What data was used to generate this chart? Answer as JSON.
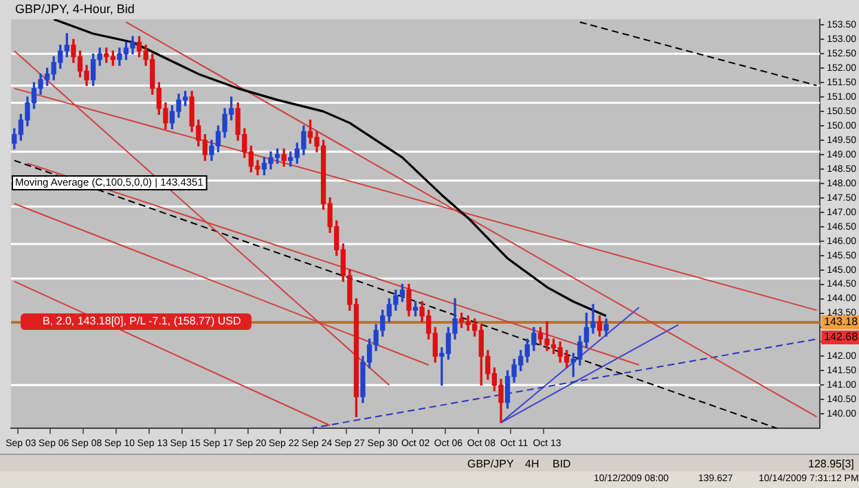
{
  "chart_data": {
    "type": "candlestick",
    "title": "GBP/JPY, 4-Hour, Bid",
    "categories": [
      null,
      "Sep 03",
      null,
      null,
      null,
      null,
      "Sep 06",
      null,
      null,
      null,
      null,
      "Sep 08",
      null,
      null,
      null,
      null,
      "Sep 10",
      null,
      null,
      null,
      null,
      "Sep 13",
      null,
      null,
      null,
      null,
      "Sep 15",
      null,
      null,
      null,
      null,
      "Sep 17",
      null,
      null,
      null,
      null,
      "Sep 20",
      null,
      null,
      null,
      null,
      "Sep 22",
      null,
      null,
      null,
      null,
      "Sep 24",
      null,
      null,
      null,
      null,
      "Sep 27",
      null,
      null,
      null,
      null,
      "Sep 30",
      null,
      null,
      null,
      null,
      "Oct 02",
      null,
      null,
      null,
      null,
      "Oct 06",
      null,
      null,
      null,
      null,
      "Oct 08",
      null,
      null,
      null,
      null,
      "Oct 11",
      null,
      null,
      null,
      null,
      "Oct 13",
      null,
      null,
      null,
      null,
      null,
      null,
      null,
      null,
      null,
      null,
      null,
      null,
      null,
      null,
      null,
      null,
      null,
      null,
      null,
      null,
      null,
      null,
      null,
      null,
      null,
      null,
      null,
      null,
      null,
      null,
      null,
      null,
      null,
      null,
      null,
      null,
      null,
      null,
      null,
      null,
      null
    ],
    "ohlc": [
      [
        149.4,
        149.9,
        149.2,
        149.7
      ],
      [
        149.7,
        150.4,
        149.5,
        150.2
      ],
      [
        150.2,
        151.0,
        150.0,
        150.8
      ],
      [
        150.8,
        151.5,
        150.6,
        151.3
      ],
      [
        151.3,
        151.8,
        151.1,
        151.6
      ],
      [
        151.6,
        152.0,
        151.4,
        151.8
      ],
      [
        151.8,
        152.4,
        151.6,
        152.2
      ],
      [
        152.2,
        152.8,
        152.0,
        152.6
      ],
      [
        152.6,
        153.2,
        152.4,
        152.8
      ],
      [
        152.8,
        153.0,
        152.2,
        152.4
      ],
      [
        152.4,
        152.6,
        151.7,
        151.9
      ],
      [
        151.9,
        152.1,
        151.4,
        151.6
      ],
      [
        151.6,
        152.5,
        151.4,
        152.3
      ],
      [
        152.3,
        152.7,
        152.1,
        152.5
      ],
      [
        152.5,
        152.7,
        152.2,
        152.4
      ],
      [
        152.4,
        152.6,
        152.1,
        152.3
      ],
      [
        152.3,
        152.7,
        152.1,
        152.5
      ],
      [
        152.5,
        152.9,
        152.3,
        152.7
      ],
      [
        152.7,
        153.1,
        152.5,
        152.9
      ],
      [
        152.9,
        153.1,
        152.4,
        152.6
      ],
      [
        152.6,
        152.8,
        152.1,
        152.3
      ],
      [
        152.3,
        152.5,
        151.1,
        151.3
      ],
      [
        151.3,
        151.5,
        150.4,
        150.6
      ],
      [
        150.6,
        150.8,
        149.9,
        150.1
      ],
      [
        150.1,
        150.7,
        149.9,
        150.5
      ],
      [
        150.5,
        151.1,
        150.3,
        150.9
      ],
      [
        150.9,
        151.2,
        150.7,
        151.0
      ],
      [
        151.0,
        151.2,
        149.8,
        150.0
      ],
      [
        150.0,
        150.2,
        149.3,
        149.5
      ],
      [
        149.5,
        149.7,
        148.8,
        149.0
      ],
      [
        149.0,
        149.5,
        148.8,
        149.3
      ],
      [
        149.3,
        150.0,
        149.1,
        149.8
      ],
      [
        149.8,
        150.6,
        149.6,
        150.4
      ],
      [
        150.4,
        151.0,
        150.2,
        150.6
      ],
      [
        150.6,
        150.8,
        149.5,
        149.7
      ],
      [
        149.7,
        149.9,
        148.9,
        149.1
      ],
      [
        149.1,
        149.3,
        148.4,
        148.6
      ],
      [
        148.6,
        148.8,
        148.3,
        148.5
      ],
      [
        148.5,
        148.9,
        148.3,
        148.7
      ],
      [
        148.7,
        149.1,
        148.5,
        148.9
      ],
      [
        148.9,
        149.2,
        148.7,
        149.0
      ],
      [
        149.0,
        149.2,
        148.6,
        148.8
      ],
      [
        148.8,
        149.1,
        148.6,
        148.9
      ],
      [
        148.9,
        149.4,
        148.7,
        149.2
      ],
      [
        149.2,
        150.0,
        149.0,
        149.8
      ],
      [
        149.8,
        150.2,
        149.4,
        149.6
      ],
      [
        149.6,
        149.8,
        149.1,
        149.3
      ],
      [
        149.3,
        149.5,
        147.1,
        147.3
      ],
      [
        147.3,
        147.5,
        146.3,
        146.5
      ],
      [
        146.5,
        146.7,
        145.5,
        145.7
      ],
      [
        145.7,
        145.9,
        144.6,
        144.8
      ],
      [
        144.8,
        145.0,
        143.6,
        143.8
      ],
      [
        143.8,
        144.0,
        139.9,
        140.6
      ],
      [
        140.6,
        142.0,
        140.4,
        141.8
      ],
      [
        141.8,
        142.6,
        141.6,
        142.4
      ],
      [
        142.4,
        143.1,
        142.2,
        142.9
      ],
      [
        142.9,
        143.6,
        142.7,
        143.4
      ],
      [
        143.4,
        144.0,
        143.2,
        143.8
      ],
      [
        143.8,
        144.3,
        143.6,
        144.1
      ],
      [
        144.1,
        144.5,
        143.9,
        144.3
      ],
      [
        144.3,
        144.5,
        143.4,
        143.6
      ],
      [
        143.6,
        143.9,
        143.4,
        143.7
      ],
      [
        143.7,
        143.9,
        143.2,
        143.4
      ],
      [
        143.4,
        143.6,
        142.6,
        142.8
      ],
      [
        142.8,
        143.0,
        141.8,
        142.0
      ],
      [
        142.0,
        142.3,
        141.0,
        142.1
      ],
      [
        142.1,
        143.0,
        141.9,
        142.8
      ],
      [
        142.8,
        144.0,
        142.6,
        143.3
      ],
      [
        143.3,
        143.5,
        143.0,
        143.2
      ],
      [
        143.2,
        143.4,
        142.9,
        143.1
      ],
      [
        143.1,
        143.3,
        142.7,
        142.9
      ],
      [
        142.9,
        143.1,
        141.0,
        142.0
      ],
      [
        142.0,
        142.2,
        141.2,
        141.4
      ],
      [
        141.4,
        141.6,
        140.8,
        141.0
      ],
      [
        141.0,
        141.2,
        139.7,
        140.4
      ],
      [
        140.4,
        141.5,
        140.2,
        141.3
      ],
      [
        141.3,
        141.9,
        141.1,
        141.7
      ],
      [
        141.7,
        142.2,
        141.5,
        142.0
      ],
      [
        142.0,
        142.6,
        141.8,
        142.4
      ],
      [
        142.4,
        143.0,
        142.2,
        142.8
      ],
      [
        142.8,
        143.0,
        142.4,
        142.6
      ],
      [
        142.6,
        143.2,
        142.2,
        142.4
      ],
      [
        142.4,
        142.6,
        142.1,
        142.3
      ],
      [
        142.3,
        142.5,
        141.8,
        142.0
      ],
      [
        142.0,
        142.2,
        141.6,
        141.8
      ],
      [
        141.8,
        142.1,
        141.3,
        141.9
      ],
      [
        141.9,
        142.7,
        141.7,
        142.5
      ],
      [
        142.5,
        143.5,
        142.3,
        143.0
      ],
      [
        143.0,
        143.8,
        142.8,
        143.2
      ],
      [
        143.2,
        143.4,
        142.7,
        142.9
      ],
      [
        142.9,
        143.3,
        142.7,
        143.1
      ],
      null,
      null,
      null,
      null,
      null,
      null,
      null,
      null,
      null,
      null,
      null,
      null,
      null,
      null,
      null,
      null,
      null,
      null,
      null,
      null,
      null,
      null,
      null,
      null,
      null,
      null,
      null,
      null,
      null,
      null,
      null,
      null
    ],
    "series": [
      {
        "type": "line",
        "color": "#000000",
        "values": [
          null,
          null,
          null,
          null,
          null,
          null,
          153.7,
          null,
          null,
          null,
          null,
          null,
          153.2,
          null,
          null,
          null,
          null,
          null,
          152.9,
          null,
          null,
          null,
          null,
          null,
          null,
          null,
          null,
          null,
          151.8,
          null,
          null,
          null,
          null,
          null,
          151.3,
          null,
          null,
          null,
          null,
          null,
          150.9,
          null,
          null,
          null,
          null,
          null,
          null,
          150.5,
          null,
          null,
          null,
          150.1,
          null,
          null,
          null,
          null,
          null,
          null,
          null,
          148.9,
          null,
          null,
          null,
          null,
          null,
          147.6,
          null,
          null,
          null,
          146.8,
          null,
          null,
          null,
          null,
          null,
          145.4,
          null,
          null,
          null,
          null,
          null,
          144.4,
          null,
          null,
          null,
          143.9,
          null,
          null,
          null,
          null,
          143.4,
          null,
          null,
          null,
          null,
          null,
          null,
          null,
          null,
          null,
          null,
          null,
          null,
          null,
          null,
          null,
          null,
          null,
          null,
          null,
          null,
          null,
          null,
          null,
          null,
          null,
          null,
          null,
          null,
          null,
          null,
          null,
          null
        ]
      },
      {
        "type": "line",
        "color": "#d04040",
        "values": [
          null,
          null,
          null,
          null,
          null,
          null,
          null,
          null,
          null,
          null,
          null,
          null,
          null,
          null,
          null,
          null,
          null,
          153.6,
          null,
          null,
          null,
          null,
          null,
          null,
          null,
          null,
          null,
          null,
          null,
          null,
          null,
          null,
          null,
          null,
          null,
          null,
          null,
          null,
          null,
          null,
          null,
          null,
          null,
          null,
          null,
          null,
          null,
          null,
          null,
          null,
          null,
          null,
          null,
          null,
          null,
          null,
          null,
          null,
          null,
          null,
          null,
          null,
          null,
          null,
          null,
          null,
          null,
          null,
          null,
          null,
          null,
          null,
          null,
          null,
          null,
          null,
          null,
          null,
          null,
          null,
          null,
          null,
          null,
          null,
          null,
          null,
          null,
          null,
          null,
          null,
          null,
          null,
          null,
          null,
          null,
          null,
          null,
          null,
          null,
          null,
          null,
          null,
          null,
          null,
          null,
          null,
          null,
          null,
          null,
          null,
          null,
          null,
          null,
          null,
          null,
          null,
          null,
          null,
          null,
          null,
          null,
          null,
          139.9
        ]
      },
      {
        "type": "line",
        "color": "#d04040",
        "values": [
          151.3,
          null,
          null,
          null,
          null,
          null,
          null,
          null,
          null,
          null,
          null,
          null,
          null,
          null,
          null,
          null,
          null,
          null,
          null,
          null,
          null,
          null,
          null,
          null,
          null,
          null,
          null,
          null,
          null,
          null,
          null,
          null,
          null,
          null,
          null,
          null,
          null,
          null,
          null,
          null,
          null,
          null,
          null,
          null,
          null,
          null,
          null,
          null,
          null,
          null,
          null,
          null,
          null,
          null,
          null,
          null,
          null,
          null,
          null,
          null,
          null,
          null,
          null,
          null,
          null,
          null,
          null,
          null,
          null,
          null,
          null,
          null,
          null,
          null,
          null,
          null,
          null,
          null,
          null,
          null,
          null,
          null,
          null,
          null,
          null,
          null,
          null,
          null,
          null,
          null,
          null,
          null,
          null,
          null,
          null,
          null,
          null,
          null,
          null,
          null,
          null,
          null,
          null,
          null,
          null,
          null,
          null,
          null,
          null,
          null,
          null,
          null,
          null,
          null,
          null,
          null,
          null,
          null,
          null,
          null,
          null,
          null,
          143.6
        ]
      },
      {
        "type": "line",
        "color": "#d04040",
        "values": [
          152.6,
          null,
          null,
          null,
          null,
          null,
          null,
          null,
          null,
          null,
          null,
          null,
          null,
          null,
          null,
          null,
          null,
          null,
          null,
          null,
          null,
          null,
          null,
          null,
          null,
          null,
          null,
          null,
          null,
          null,
          null,
          null,
          null,
          null,
          null,
          null,
          null,
          null,
          null,
          null,
          null,
          null,
          null,
          null,
          null,
          null,
          null,
          null,
          null,
          null,
          null,
          null,
          null,
          null,
          null,
          null,
          null,
          141.0,
          null,
          null,
          null,
          null,
          null,
          null,
          null,
          null,
          null,
          null,
          null,
          null,
          null,
          null,
          null,
          null,
          null,
          null,
          null,
          null,
          null,
          null,
          null,
          null,
          null,
          null,
          null,
          null,
          null,
          null,
          null,
          null,
          null,
          null,
          null,
          null,
          null,
          null,
          null,
          null,
          null,
          null,
          null,
          null,
          null,
          null,
          null,
          null,
          null,
          null,
          null,
          null,
          null,
          null,
          null,
          null,
          null,
          null,
          null,
          null,
          null,
          null,
          null,
          null,
          null
        ]
      },
      {
        "type": "line",
        "color": "#d04040",
        "values": [
          147.3,
          null,
          null,
          null,
          null,
          null,
          null,
          null,
          null,
          null,
          null,
          null,
          null,
          null,
          null,
          null,
          null,
          null,
          null,
          null,
          null,
          null,
          null,
          null,
          null,
          null,
          null,
          null,
          null,
          null,
          null,
          null,
          null,
          null,
          null,
          null,
          null,
          null,
          null,
          null,
          null,
          null,
          null,
          null,
          null,
          null,
          null,
          null,
          null,
          null,
          null,
          null,
          null,
          null,
          null,
          null,
          null,
          null,
          null,
          null,
          null,
          null,
          null,
          141.7,
          null,
          null,
          null,
          null,
          null,
          null,
          null,
          null,
          null,
          null,
          null,
          null,
          null,
          null,
          null,
          null,
          null,
          null,
          null,
          null,
          null,
          null,
          null,
          null,
          null,
          null,
          null,
          null,
          null,
          null,
          null,
          null,
          null,
          null,
          null,
          null,
          null,
          null,
          null,
          null,
          null,
          null,
          null,
          null,
          null,
          null,
          null,
          null,
          null,
          null,
          null,
          null,
          null,
          null,
          null,
          null,
          null,
          null,
          null
        ]
      },
      {
        "type": "line",
        "color": "#d04040",
        "values": [
          144.6,
          null,
          null,
          null,
          null,
          null,
          null,
          null,
          null,
          null,
          null,
          null,
          null,
          null,
          null,
          null,
          null,
          null,
          null,
          null,
          null,
          null,
          null,
          null,
          null,
          null,
          null,
          null,
          null,
          null,
          null,
          null,
          null,
          null,
          null,
          null,
          null,
          null,
          null,
          null,
          null,
          null,
          null,
          null,
          null,
          null,
          null,
          null,
          139.6,
          null,
          null,
          null,
          null,
          null,
          null,
          null,
          null,
          null,
          null,
          null,
          null,
          null,
          null,
          null,
          null,
          null,
          null,
          null,
          null,
          null,
          null,
          null,
          null,
          null,
          null,
          null,
          null,
          null,
          null,
          null,
          null,
          null,
          null,
          null,
          null,
          null,
          null,
          null,
          null,
          null,
          null,
          null,
          null,
          null,
          null,
          null,
          null,
          null,
          null,
          null,
          null,
          null,
          null,
          null,
          null,
          null,
          null,
          null,
          null,
          null,
          null,
          null,
          null,
          null,
          null,
          null,
          null,
          null,
          null,
          null,
          null,
          null,
          null
        ]
      },
      {
        "type": "line",
        "color": "#d04040",
        "values": [
          null,
          null,
          148.7,
          null,
          null,
          null,
          null,
          null,
          null,
          null,
          null,
          null,
          null,
          null,
          null,
          null,
          null,
          null,
          null,
          null,
          null,
          null,
          null,
          null,
          null,
          null,
          null,
          null,
          null,
          null,
          null,
          null,
          null,
          null,
          null,
          null,
          null,
          null,
          null,
          null,
          null,
          null,
          null,
          null,
          null,
          null,
          null,
          null,
          null,
          null,
          null,
          null,
          null,
          null,
          null,
          null,
          null,
          null,
          null,
          null,
          null,
          null,
          null,
          null,
          null,
          null,
          null,
          null,
          null,
          null,
          null,
          null,
          null,
          null,
          null,
          null,
          null,
          null,
          null,
          null,
          null,
          null,
          null,
          null,
          null,
          null,
          null,
          null,
          null,
          null,
          null,
          null,
          null,
          null,
          null,
          141.7,
          null,
          null,
          null,
          null,
          null,
          null,
          null,
          null,
          null,
          null,
          null,
          null,
          null,
          null,
          null,
          null,
          null,
          null,
          null,
          null,
          null,
          null,
          null,
          null,
          null,
          null,
          null
        ]
      },
      {
        "type": "line",
        "color": "#000000",
        "line_style": "dashed",
        "values": [
          148.8,
          null,
          null,
          null,
          null,
          null,
          null,
          null,
          null,
          null,
          null,
          null,
          null,
          null,
          null,
          null,
          null,
          null,
          null,
          null,
          null,
          null,
          null,
          null,
          null,
          null,
          null,
          null,
          null,
          null,
          null,
          null,
          null,
          null,
          null,
          null,
          null,
          null,
          null,
          null,
          null,
          null,
          null,
          null,
          null,
          null,
          null,
          null,
          null,
          null,
          null,
          null,
          null,
          null,
          null,
          null,
          null,
          null,
          null,
          null,
          null,
          null,
          null,
          null,
          null,
          null,
          null,
          null,
          null,
          null,
          null,
          null,
          null,
          null,
          null,
          null,
          null,
          null,
          null,
          null,
          null,
          null,
          null,
          null,
          null,
          null,
          null,
          null,
          null,
          null,
          null,
          null,
          null,
          null,
          null,
          null,
          null,
          null,
          null,
          null,
          null,
          null,
          null,
          null,
          null,
          null,
          null,
          null,
          null,
          null,
          null,
          null,
          null,
          null,
          null,
          null,
          139.5,
          null,
          null,
          null,
          null,
          null,
          null
        ]
      },
      {
        "type": "line",
        "color": "#000000",
        "line_style": "dashed",
        "values": [
          null,
          null,
          null,
          null,
          null,
          null,
          null,
          null,
          null,
          null,
          null,
          null,
          null,
          null,
          null,
          null,
          null,
          null,
          null,
          null,
          null,
          null,
          null,
          null,
          null,
          null,
          null,
          null,
          null,
          null,
          null,
          null,
          null,
          null,
          null,
          null,
          null,
          null,
          null,
          null,
          null,
          null,
          null,
          null,
          null,
          null,
          null,
          null,
          null,
          null,
          null,
          null,
          null,
          null,
          null,
          null,
          null,
          null,
          null,
          null,
          null,
          null,
          null,
          null,
          null,
          null,
          null,
          null,
          null,
          null,
          null,
          null,
          null,
          null,
          null,
          null,
          null,
          null,
          null,
          null,
          null,
          null,
          null,
          null,
          null,
          null,
          153.6,
          null,
          null,
          null,
          null,
          null,
          null,
          null,
          null,
          null,
          null,
          null,
          null,
          null,
          null,
          null,
          null,
          null,
          null,
          null,
          null,
          null,
          null,
          null,
          null,
          null,
          null,
          null,
          null,
          null,
          null,
          null,
          null,
          null,
          null,
          null,
          151.4
        ]
      },
      {
        "type": "line",
        "color": "#3030c0",
        "line_style": "dashed",
        "values": [
          null,
          null,
          null,
          null,
          null,
          null,
          null,
          null,
          null,
          null,
          null,
          null,
          null,
          null,
          null,
          null,
          null,
          null,
          null,
          null,
          null,
          null,
          null,
          null,
          null,
          null,
          null,
          null,
          null,
          null,
          null,
          null,
          null,
          null,
          null,
          null,
          null,
          null,
          null,
          null,
          null,
          null,
          null,
          null,
          null,
          139.5,
          null,
          null,
          null,
          null,
          null,
          null,
          null,
          null,
          null,
          null,
          null,
          null,
          null,
          null,
          null,
          null,
          null,
          null,
          null,
          null,
          null,
          null,
          null,
          null,
          null,
          null,
          null,
          null,
          null,
          null,
          null,
          null,
          null,
          null,
          null,
          null,
          null,
          null,
          null,
          null,
          null,
          null,
          null,
          null,
          null,
          null,
          null,
          null,
          null,
          null,
          null,
          null,
          null,
          null,
          null,
          null,
          null,
          null,
          null,
          null,
          null,
          null,
          null,
          null,
          null,
          null,
          null,
          null,
          null,
          null,
          null,
          null,
          null,
          null,
          null,
          null,
          142.6
        ]
      },
      {
        "type": "line",
        "color": "#4040d0",
        "values": [
          null,
          null,
          null,
          null,
          null,
          null,
          null,
          null,
          null,
          null,
          null,
          null,
          null,
          null,
          null,
          null,
          null,
          null,
          null,
          null,
          null,
          null,
          null,
          null,
          null,
          null,
          null,
          null,
          null,
          null,
          null,
          null,
          null,
          null,
          null,
          null,
          null,
          null,
          null,
          null,
          null,
          null,
          null,
          null,
          null,
          null,
          null,
          null,
          null,
          null,
          null,
          null,
          null,
          null,
          null,
          null,
          null,
          null,
          null,
          null,
          null,
          null,
          null,
          null,
          null,
          null,
          null,
          null,
          null,
          null,
          null,
          null,
          null,
          null,
          139.7,
          null,
          null,
          null,
          null,
          null,
          null,
          null,
          null,
          null,
          null,
          null,
          null,
          null,
          null,
          null,
          null,
          null,
          null,
          null,
          null,
          143.7,
          null,
          null,
          null,
          null,
          null,
          null,
          null,
          null,
          null,
          null,
          null,
          null,
          null,
          null,
          null,
          null,
          null,
          null,
          null,
          null,
          null,
          null,
          null,
          null,
          null,
          null,
          null
        ]
      },
      {
        "type": "line",
        "color": "#4040d0",
        "values": [
          null,
          null,
          null,
          null,
          null,
          null,
          null,
          null,
          null,
          null,
          null,
          null,
          null,
          null,
          null,
          null,
          null,
          null,
          null,
          null,
          null,
          null,
          null,
          null,
          null,
          null,
          null,
          null,
          null,
          null,
          null,
          null,
          null,
          null,
          null,
          null,
          null,
          null,
          null,
          null,
          null,
          null,
          null,
          null,
          null,
          null,
          null,
          null,
          null,
          null,
          null,
          null,
          null,
          null,
          null,
          null,
          null,
          null,
          null,
          null,
          null,
          null,
          null,
          null,
          null,
          null,
          null,
          null,
          null,
          null,
          null,
          null,
          null,
          null,
          139.7,
          null,
          null,
          null,
          null,
          null,
          null,
          null,
          null,
          null,
          null,
          null,
          null,
          null,
          null,
          null,
          null,
          null,
          null,
          null,
          null,
          null,
          null,
          null,
          null,
          null,
          null,
          143.1,
          null,
          null,
          null,
          null,
          null,
          null,
          null,
          null,
          null,
          null,
          null,
          null,
          null,
          null,
          null,
          null,
          null,
          null,
          null,
          null,
          null
        ]
      }
    ],
    "ylim": [
      139.5,
      153.7
    ],
    "yticks": [
      {
        "value": 140,
        "label": "140.00"
      },
      {
        "value": 140.5,
        "label": "140.50"
      },
      {
        "value": 141,
        "label": "141.00"
      },
      {
        "value": 141.5,
        "label": "141.50"
      },
      {
        "value": 142,
        "label": "142.00"
      },
      {
        "value": 142.5,
        "label": null
      },
      {
        "value": 143,
        "label": null
      },
      {
        "value": 143.5,
        "label": "143.50"
      },
      {
        "value": 144,
        "label": "144.00"
      },
      {
        "value": 144.5,
        "label": "144.50"
      },
      {
        "value": 145,
        "label": "145.00"
      },
      {
        "value": 145.5,
        "label": "145.50"
      },
      {
        "value": 146,
        "label": "146.00"
      },
      {
        "value": 146.5,
        "label": "146.50"
      },
      {
        "value": 147,
        "label": "147.00"
      },
      {
        "value": 147.5,
        "label": "147.50"
      },
      {
        "value": 148,
        "label": "148.00"
      },
      {
        "value": 148.5,
        "label": "148.50"
      },
      {
        "value": 149,
        "label": "149.00"
      },
      {
        "value": 149.5,
        "label": "149.50"
      },
      {
        "value": 150,
        "label": "150.00"
      },
      {
        "value": 150.5,
        "label": "150.50"
      },
      {
        "value": 151,
        "label": "151.00"
      },
      {
        "value": 151.5,
        "label": "151.50"
      },
      {
        "value": 152,
        "label": "152.00"
      },
      {
        "value": 152.5,
        "label": "152.50"
      },
      {
        "value": 153,
        "label": "153.00"
      },
      {
        "value": 153.5,
        "label": "153.50"
      }
    ],
    "ref_lines": [
      {
        "axis": "y",
        "value": 152.5,
        "color": "#ffffff"
      },
      {
        "axis": "y",
        "value": 151.4,
        "color": "#ffffff"
      },
      {
        "axis": "y",
        "value": 150.8,
        "color": "#ffffff"
      },
      {
        "axis": "y",
        "value": 149.1,
        "color": "#ffffff"
      },
      {
        "axis": "y",
        "value": 148.1,
        "color": "#ffffff"
      },
      {
        "axis": "y",
        "value": 147.2,
        "color": "#ffffff"
      },
      {
        "axis": "y",
        "value": 145.9,
        "color": "#ffffff"
      },
      {
        "axis": "y",
        "value": 144.7,
        "color": "#ffffff"
      },
      {
        "axis": "y",
        "value": 141.0,
        "color": "#ffffff"
      },
      {
        "axis": "y",
        "value": 143.18,
        "color": "#b87333",
        "label": "B, 2.0, 143.18[0], P/L -7.1, (158.77) USD"
      }
    ],
    "annotations": [
      "Moving Average (C,100,5,0,0) | 143.4351",
      "143.18",
      "142.68",
      "GBP/JPY",
      "4H",
      "BID",
      "128.95[3]",
      "10/12/2009 08:00",
      "139.627",
      "10/14/2009 7:31:12 PM"
    ],
    "legend": false,
    "grid": false,
    "marker": "none"
  }
}
